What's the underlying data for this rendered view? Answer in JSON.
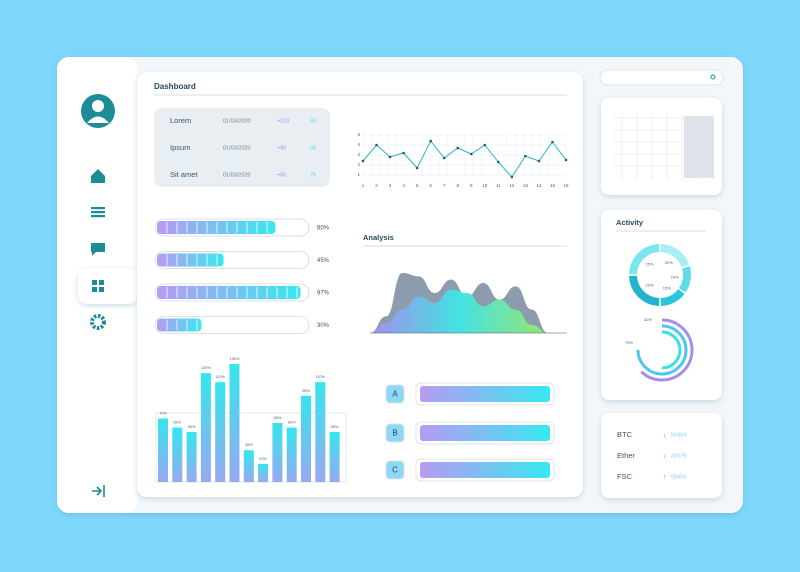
{
  "dashboard_title": "Dashboard",
  "table": {
    "rows": [
      [
        "Lorem",
        "01/03/2020",
        "+120",
        "50"
      ],
      [
        "Ipsum",
        "01/03/2020",
        "+80",
        "34"
      ],
      [
        "Sit amet",
        "01/03/2020",
        "+60",
        "75"
      ]
    ]
  },
  "chart_data": [
    {
      "type": "line",
      "x": [
        1,
        2,
        3,
        4,
        5,
        6,
        7,
        8,
        9,
        10,
        11,
        12,
        13,
        14,
        15,
        16
      ],
      "values": [
        2.4,
        4,
        2.8,
        3.2,
        1.7,
        4.4,
        2.7,
        3.7,
        3.1,
        4,
        2.3,
        0.8,
        2.9,
        2.4,
        4.3,
        2.5
      ],
      "color": "#2bb5c9",
      "xlim": [
        1,
        16
      ],
      "ylim": [
        0.5,
        5.5
      ],
      "xticks": [
        1,
        2,
        3,
        4,
        5,
        6,
        7,
        8,
        9,
        10,
        11,
        12,
        13,
        14,
        15,
        16
      ],
      "yticks": [
        1,
        2,
        3,
        4,
        5
      ],
      "grid": true
    },
    {
      "type": "progress",
      "values": [
        80,
        45,
        97,
        30
      ],
      "value_labels": [
        "80%",
        "45%",
        "97%",
        "30%"
      ],
      "xlim": [
        0,
        100
      ]
    },
    {
      "type": "area",
      "title": "Analysis",
      "series": [
        {
          "color": "#8c9cad",
          "values": [
            0,
            0.25,
            0.9,
            0.85,
            0.6,
            0.8,
            0.55,
            0.75,
            0.5,
            0.7,
            0.35,
            0
          ]
        },
        {
          "color": "#3fe6e6",
          "values": [
            0,
            0.15,
            0.35,
            0.55,
            0.45,
            0.65,
            0.6,
            0.4,
            0.5,
            0.35,
            0.12,
            0
          ]
        }
      ]
    },
    {
      "type": "bar",
      "values": [
        70,
        60,
        55,
        120,
        110,
        130,
        35,
        20,
        65,
        60,
        95,
        110,
        55
      ],
      "value_labels": [
        "70%",
        "60%",
        "55%",
        "120%",
        "110%",
        "130%",
        "35%",
        "20%",
        "65%",
        "60%",
        "95%",
        "110%",
        "55%"
      ],
      "color": "#2fd9e8"
    },
    {
      "type": "pie",
      "values": [
        20,
        15,
        15,
        25,
        25
      ],
      "value_labels": [
        "20%",
        "15%",
        "15%",
        "25%",
        "25%"
      ],
      "colors": [
        "#a7eef5",
        "#5fdcea",
        "#2cc6dc",
        "#22b4cc",
        "#7ce6ef"
      ]
    },
    {
      "type": "radial",
      "values": [
        62,
        75,
        50
      ],
      "value_labels": [
        "62%",
        "75%",
        null
      ],
      "colors": [
        "#a58ef0",
        "#4cc8f0",
        "#38e0e8"
      ]
    }
  ],
  "options": [
    "A",
    "B",
    "C"
  ],
  "activity_title": "Activity",
  "crypto": {
    "rows": [
      [
        "BTC",
        "↓",
        "50384"
      ],
      [
        "Ether",
        "↓",
        "32079"
      ],
      [
        "FSC",
        "↑",
        "59456"
      ]
    ]
  }
}
